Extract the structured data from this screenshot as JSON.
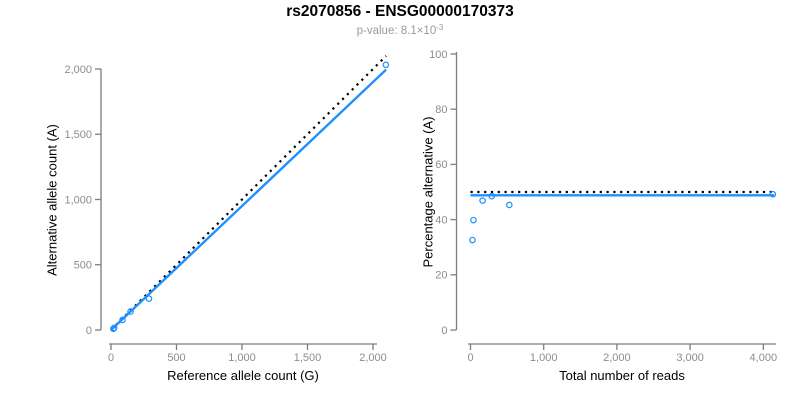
{
  "header": {
    "title": "rs2070856 - ENSG00000170373",
    "subtitle_prefix": "p-value: 8.1×10",
    "subtitle_exponent": "-3"
  },
  "colors": {
    "accent_blue": "#1E90FF",
    "dotted_black": "#000000",
    "axis_gray": "#7d7d7d",
    "tick_label_gray": "#8c8c8c",
    "title_black": "#000000",
    "subtitle_gray": "#9a9a9a"
  },
  "chart_data": [
    {
      "type": "scatter",
      "panel": "left",
      "xlabel": "Reference allele count (G)",
      "ylabel": "Alternative allele count (A)",
      "xlim": [
        0,
        2100
      ],
      "ylim": [
        0,
        2100
      ],
      "grid": false,
      "xticks": {
        "values": [
          0,
          500,
          1000,
          1500,
          2000
        ],
        "labels": [
          "0",
          "500",
          "1,000",
          "1,500",
          "2,000"
        ]
      },
      "yticks": {
        "values": [
          0,
          500,
          1000,
          1500,
          2000
        ],
        "labels": [
          "0",
          "500",
          "1,000",
          "1,500",
          "2,000"
        ]
      },
      "points": [
        [
          18,
          9
        ],
        [
          24,
          16
        ],
        [
          88,
          77
        ],
        [
          149,
          141
        ],
        [
          290,
          240
        ],
        [
          2098,
          2032
        ]
      ],
      "lines": [
        {
          "name": "identity-line",
          "style": "dotted",
          "color": "#000000",
          "x1": 0,
          "y1": 0,
          "x2": 2100,
          "y2": 2100
        },
        {
          "name": "fit-line",
          "style": "solid",
          "color": "#1E90FF",
          "x1": 0,
          "y1": 0,
          "x2": 2100,
          "y2": 1995
        }
      ]
    },
    {
      "type": "scatter",
      "panel": "right",
      "xlabel": "Total number of reads",
      "ylabel": "Percentage alternative (A)",
      "xlim": [
        0,
        4150
      ],
      "ylim": [
        0,
        100
      ],
      "grid": false,
      "xticks": {
        "values": [
          0,
          1000,
          2000,
          3000,
          4000
        ],
        "labels": [
          "0",
          "1,000",
          "2,000",
          "3,000",
          "4,000"
        ]
      },
      "yticks": {
        "values": [
          0,
          20,
          40,
          60,
          80,
          100
        ],
        "labels": [
          "0",
          "20",
          "40",
          "60",
          "80",
          "100"
        ]
      },
      "points": [
        [
          27,
          32.6
        ],
        [
          40,
          39.8
        ],
        [
          165,
          46.9
        ],
        [
          290,
          48.5
        ],
        [
          530,
          45.3
        ],
        [
          4130,
          49.2
        ]
      ],
      "lines": [
        {
          "name": "null-line",
          "style": "dotted",
          "color": "#000000",
          "x1": 0,
          "y1": 50,
          "x2": 4150,
          "y2": 50
        },
        {
          "name": "fit-line",
          "style": "solid",
          "color": "#1E90FF",
          "x1": 0,
          "y1": 48.8,
          "x2": 4150,
          "y2": 48.8
        }
      ]
    }
  ]
}
